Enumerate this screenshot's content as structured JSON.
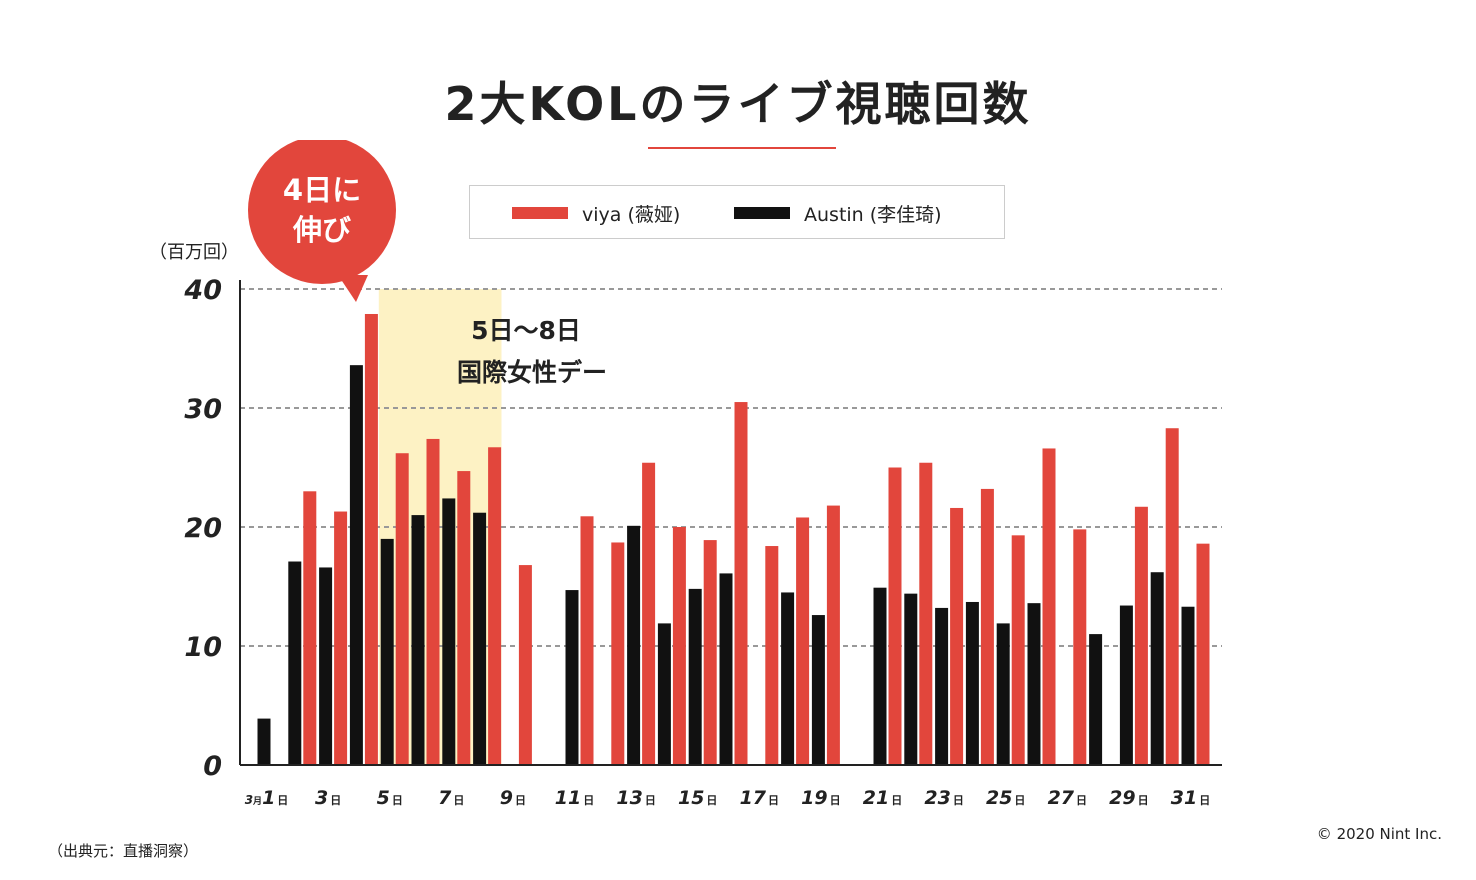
{
  "title": "2大KOLのライブ視聴回数",
  "unit_label": "（百万回）",
  "source": "（出典元：直播洞察）",
  "copyright": "© 2020 Nint Inc.",
  "callout": {
    "line1": "4日に",
    "line2": "伸び"
  },
  "highlight_note": {
    "line1": "5日〜8日",
    "line2": "国際女性デー"
  },
  "legend": [
    {
      "label": "viya (薇娅)",
      "color": "#e2463c"
    },
    {
      "label": "Austin (李佳琦)",
      "color": "#111111"
    }
  ],
  "colors": {
    "accent": "#e2463c",
    "highlight": "#fdf2c4",
    "grid": "#999999"
  },
  "chart_data": {
    "type": "bar",
    "title": "2大KOLのライブ視聴回数",
    "ylabel": "（百万回）",
    "ylim": [
      0,
      40
    ],
    "yticks": [
      "0",
      "10",
      "20",
      "30",
      "40"
    ],
    "grid": true,
    "legend_position": "top-center",
    "highlight_days": [
      5,
      8
    ],
    "categories": [
      1,
      2,
      3,
      4,
      5,
      6,
      7,
      8,
      9,
      10,
      11,
      12,
      13,
      14,
      15,
      16,
      17,
      18,
      19,
      20,
      21,
      22,
      23,
      24,
      25,
      26,
      27,
      28,
      29,
      30,
      31
    ],
    "tick_labels": [
      {
        "day": 1,
        "num": "1",
        "prefix": "3",
        "prefix_small": "月",
        "suffix": "日"
      },
      {
        "day": 3,
        "num": "3",
        "suffix": "日"
      },
      {
        "day": 5,
        "num": "5",
        "suffix": "日"
      },
      {
        "day": 7,
        "num": "7",
        "suffix": "日"
      },
      {
        "day": 9,
        "num": "9",
        "suffix": "日"
      },
      {
        "day": 11,
        "num": "11",
        "suffix": "日"
      },
      {
        "day": 13,
        "num": "13",
        "suffix": "日"
      },
      {
        "day": 15,
        "num": "15",
        "suffix": "日"
      },
      {
        "day": 17,
        "num": "17",
        "suffix": "日"
      },
      {
        "day": 19,
        "num": "19",
        "suffix": "日"
      },
      {
        "day": 21,
        "num": "21",
        "suffix": "日"
      },
      {
        "day": 23,
        "num": "23",
        "suffix": "日"
      },
      {
        "day": 25,
        "num": "25",
        "suffix": "日"
      },
      {
        "day": 27,
        "num": "27",
        "suffix": "日"
      },
      {
        "day": 29,
        "num": "29",
        "suffix": "日"
      },
      {
        "day": 31,
        "num": "31",
        "suffix": "日"
      }
    ],
    "series": [
      {
        "name": "viya (薇娅)",
        "color": "#e2463c",
        "values": [
          null,
          23.0,
          21.3,
          37.9,
          26.2,
          27.4,
          24.7,
          26.7,
          16.8,
          null,
          20.9,
          18.7,
          25.4,
          20.0,
          18.9,
          30.5,
          18.4,
          20.8,
          21.8,
          null,
          25.0,
          25.4,
          21.6,
          23.2,
          19.3,
          26.6,
          19.8,
          null,
          21.7,
          28.3,
          18.6
        ]
      },
      {
        "name": "Austin (李佳琦)",
        "color": "#111111",
        "values": [
          3.9,
          17.1,
          16.6,
          33.6,
          19.0,
          21.0,
          22.4,
          21.2,
          null,
          null,
          14.7,
          null,
          20.1,
          11.9,
          14.8,
          16.1,
          null,
          14.5,
          12.6,
          null,
          14.9,
          14.4,
          13.2,
          13.7,
          11.9,
          13.6,
          null,
          11.0,
          13.4,
          16.2,
          13.3
        ]
      }
    ]
  }
}
